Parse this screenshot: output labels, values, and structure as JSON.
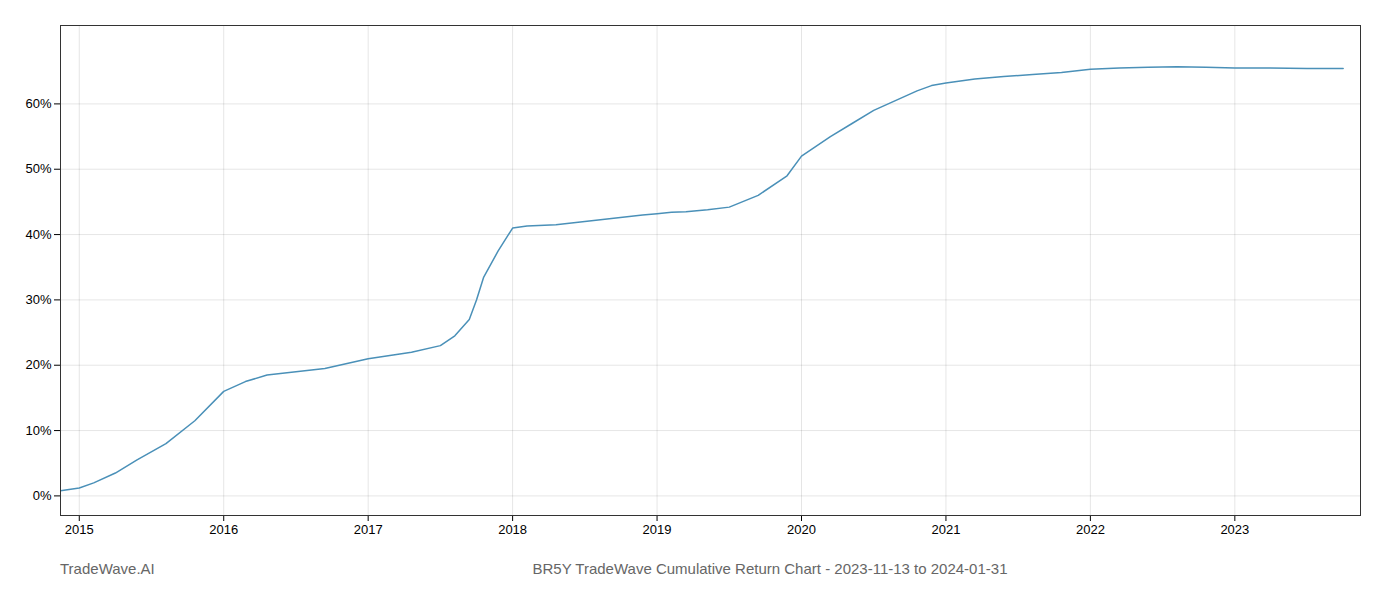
{
  "chart_data": {
    "type": "line",
    "title": "BR5Y TradeWave Cumulative Return Chart - 2023-11-13 to 2024-01-31",
    "annotations": [
      "TradeWave.AI"
    ],
    "x": [
      2014.87,
      2015.0,
      2015.1,
      2015.25,
      2015.4,
      2015.6,
      2015.8,
      2016.0,
      2016.15,
      2016.3,
      2016.5,
      2016.7,
      2016.9,
      2017.0,
      2017.15,
      2017.3,
      2017.5,
      2017.6,
      2017.7,
      2017.75,
      2017.8,
      2017.9,
      2018.0,
      2018.1,
      2018.3,
      2018.5,
      2018.7,
      2018.9,
      2019.0,
      2019.1,
      2019.2,
      2019.35,
      2019.5,
      2019.7,
      2019.9,
      2020.0,
      2020.1,
      2020.2,
      2020.35,
      2020.5,
      2020.65,
      2020.8,
      2020.9,
      2021.0,
      2021.1,
      2021.2,
      2021.4,
      2021.6,
      2021.8,
      2022.0,
      2022.2,
      2022.4,
      2022.6,
      2022.8,
      2023.0,
      2023.2,
      2023.5,
      2023.75
    ],
    "values": [
      0.8,
      1.2,
      2.0,
      3.5,
      5.5,
      8.0,
      11.5,
      16.0,
      17.5,
      18.5,
      19.0,
      19.5,
      20.5,
      21.0,
      21.5,
      22.0,
      23.0,
      24.5,
      27.0,
      30.0,
      33.5,
      37.5,
      41.0,
      41.3,
      41.5,
      42.0,
      42.5,
      43.0,
      43.2,
      43.4,
      43.5,
      43.8,
      44.2,
      46.0,
      49.0,
      52.0,
      53.5,
      55.0,
      57.0,
      59.0,
      60.5,
      62.0,
      62.8,
      63.2,
      63.5,
      63.8,
      64.2,
      64.5,
      64.8,
      65.3,
      65.5,
      65.6,
      65.7,
      65.6,
      65.5,
      65.5,
      65.4,
      65.4
    ],
    "color": "#4a90b8",
    "xlim": [
      2014.87,
      2023.87
    ],
    "ylim": [
      -3,
      72
    ],
    "xticks": [
      2015,
      2016,
      2017,
      2018,
      2019,
      2020,
      2021,
      2022,
      2023
    ],
    "yticks": [
      {
        "value": 0,
        "label": "0%"
      },
      {
        "value": 10,
        "label": "10%"
      },
      {
        "value": 20,
        "label": "20%"
      },
      {
        "value": 30,
        "label": "30%"
      },
      {
        "value": 40,
        "label": "40%"
      },
      {
        "value": 50,
        "label": "50%"
      },
      {
        "value": 60,
        "label": "60%"
      }
    ],
    "grid": true
  }
}
